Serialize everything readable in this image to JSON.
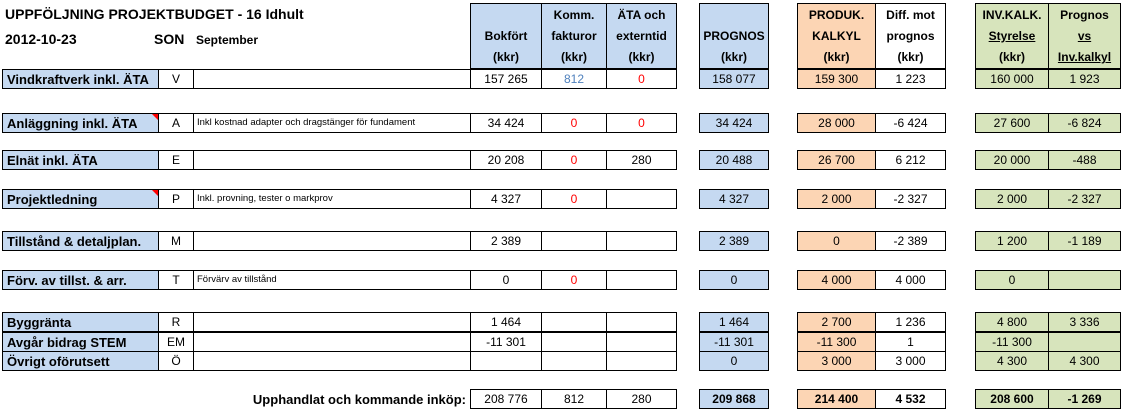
{
  "title": "UPPFÖLJNING PROJEKTBUDGET - 16 Idhult",
  "date": "2012-10-23",
  "author": "SON",
  "month": "September",
  "headers": {
    "bokfort": [
      "",
      "Bokfört",
      "(kkr)"
    ],
    "komm": [
      "Komm.",
      "fakturor",
      "(kkr)"
    ],
    "ata": [
      "ÄTA och",
      "externtid",
      "(kkr)"
    ],
    "prognos": [
      "",
      "PROGNOS",
      "(kkr)"
    ],
    "produk": [
      "PRODUK.",
      "KALKYL",
      "(kkr)"
    ],
    "diff": [
      "Diff. mot",
      "prognos",
      "(kkr)"
    ],
    "invkalk": [
      "INV.KALK.",
      "Styrelse",
      "(kkr)"
    ],
    "prognos_vs": [
      "Prognos",
      "vs",
      "Inv.kalkyl"
    ]
  },
  "rows": [
    {
      "label": "Vindkraftverk inkl. ÄTA",
      "code": "V",
      "note": "",
      "bokfort": "157 265",
      "komm": "812",
      "ata": "0",
      "prognos": "158 077",
      "produk": "159 300",
      "diff": "1 223",
      "inv": "160 000",
      "pvs": "1 923"
    },
    {
      "label": "Anläggning inkl. ÄTA",
      "code": "A",
      "note": "Inkl kostnad adapter och dragstänger för fundament",
      "bokfort": "34 424",
      "komm": "0",
      "ata": "0",
      "prognos": "34 424",
      "produk": "28 000",
      "diff": "-6 424",
      "inv": "27 600",
      "pvs": "-6 824"
    },
    {
      "label": "Elnät inkl. ÄTA",
      "code": "E",
      "note": "",
      "bokfort": "20 208",
      "komm": "0",
      "ata": "280",
      "prognos": "20 488",
      "produk": "26 700",
      "diff": "6 212",
      "inv": "20 000",
      "pvs": "-488"
    },
    {
      "label": "Projektledning",
      "code": "P",
      "note": "Inkl. provning, tester o markprov",
      "bokfort": "4 327",
      "komm": "0",
      "ata": "",
      "prognos": "4 327",
      "produk": "2 000",
      "diff": "-2 327",
      "inv": "2 000",
      "pvs": "-2 327"
    },
    {
      "label": "Tillstånd & detaljplan.",
      "code": "M",
      "note": "",
      "bokfort": "2 389",
      "komm": "",
      "ata": "",
      "prognos": "2 389",
      "produk": "0",
      "diff": "-2 389",
      "inv": "1 200",
      "pvs": "-1 189"
    },
    {
      "label": "Förv. av tillst. & arr.",
      "code": "T",
      "note": "Förvärv av tillstånd",
      "bokfort": "0",
      "komm": "0",
      "ata": "",
      "prognos": "0",
      "produk": "4 000",
      "diff": "4 000",
      "inv": "0",
      "pvs": ""
    },
    {
      "label": "Byggränta",
      "code": "R",
      "note": "",
      "bokfort": "1 464",
      "komm": "",
      "ata": "",
      "prognos": "1 464",
      "produk": "2 700",
      "diff": "1 236",
      "inv": "4 800",
      "pvs": "3 336"
    },
    {
      "label": "Avgår bidrag STEM",
      "code": "EM",
      "note": "",
      "bokfort": "-11 301",
      "komm": "",
      "ata": "",
      "prognos": "-11 301",
      "produk": "-11 300",
      "diff": "1",
      "inv": "-11 300",
      "pvs": ""
    },
    {
      "label": "Övrigt oförutsett",
      "code": "Ö",
      "note": "",
      "bokfort": "",
      "komm": "",
      "ata": "",
      "prognos": "0",
      "produk": "3 000",
      "diff": "3 000",
      "inv": "4 300",
      "pvs": "4 300"
    }
  ],
  "total": {
    "label": "Upphandlat och kommande inköp:",
    "bokfort": "208 776",
    "komm": "812",
    "ata": "280",
    "prognos": "209 868",
    "produk": "214 400",
    "diff": "4 532",
    "inv": "208 600",
    "pvs": "-1 269"
  },
  "colors": {
    "header_blue": "#c5d9f1",
    "orange": "#fcd5b4",
    "green": "#d7e4bc",
    "red_text": "#ff0000",
    "blue_text": "#4f81bd"
  }
}
